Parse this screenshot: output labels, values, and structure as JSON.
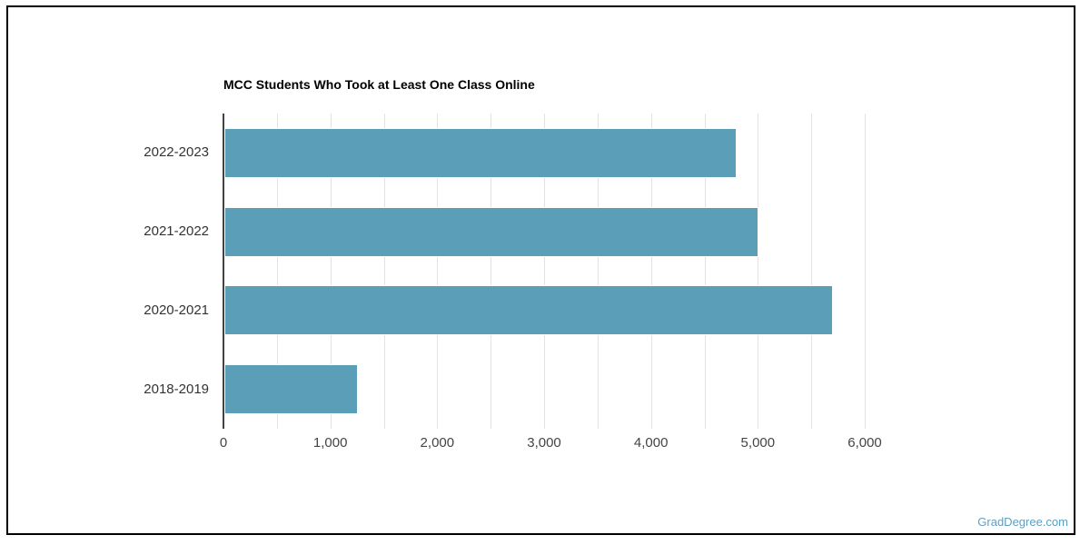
{
  "page": {
    "background": "#ffffff",
    "border_color": "#000000",
    "watermark": "GradDegree.com",
    "watermark_color": "#5c9fc6"
  },
  "chart_data": {
    "type": "bar",
    "orientation": "horizontal",
    "title": "MCC Students Who Took at Least One Class Online",
    "categories": [
      "2022-2023",
      "2021-2022",
      "2020-2021",
      "2018-2019"
    ],
    "values": [
      4790,
      5000,
      5690,
      1250
    ],
    "xlabel": "",
    "ylabel": "",
    "xlim": [
      0,
      6000
    ],
    "x_major_tick": 1000,
    "x_minor_tick": 500,
    "x_tick_labels": [
      "0",
      "1,000",
      "2,000",
      "3,000",
      "4,000",
      "5,000",
      "6,000"
    ],
    "grid": true,
    "legend": false,
    "bar_color": "#5b9eb8",
    "grid_color": "#e3e3e3",
    "axis_color": "#424242",
    "tick_label_color": "#444444",
    "category_label_color": "#333333"
  }
}
